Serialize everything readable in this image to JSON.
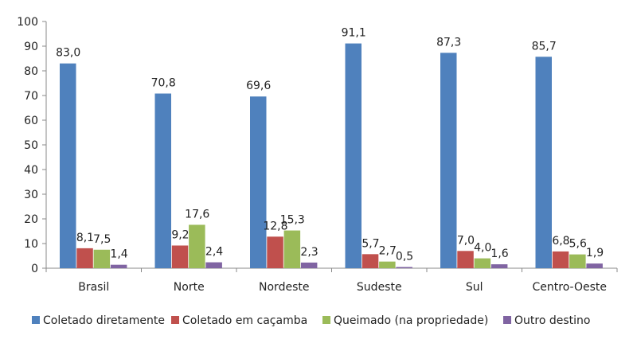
{
  "chart_data": {
    "type": "bar",
    "title": "",
    "xlabel": "",
    "ylabel": "",
    "ylim": [
      0,
      100
    ],
    "yticks": [
      "0",
      "10",
      "20",
      "30",
      "40",
      "50",
      "60",
      "70",
      "80",
      "90",
      "100"
    ],
    "grid": false,
    "legend_position": "bottom",
    "categories": [
      "Brasil",
      "Norte",
      "Nordeste",
      "Sudeste",
      "Sul",
      "Centro-Oeste"
    ],
    "series": [
      {
        "name": "Coletado diretamente",
        "color": "#4F81BD",
        "values": [
          83.0,
          70.8,
          69.6,
          91.1,
          87.3,
          85.7
        ],
        "labels": [
          "83,0",
          "70,8",
          "69,6",
          "91,1",
          "87,3",
          "85,7"
        ]
      },
      {
        "name": "Coletado em caçamba",
        "color": "#C0504D",
        "values": [
          8.1,
          9.2,
          12.8,
          5.7,
          7.0,
          6.8
        ],
        "labels": [
          "8,1",
          "9,2",
          "12,8",
          "5,7",
          "7,0",
          "6,8"
        ]
      },
      {
        "name": "Queimado (na propriedade)",
        "color": "#9BBB59",
        "values": [
          7.5,
          17.6,
          15.3,
          2.7,
          4.0,
          5.6
        ],
        "labels": [
          "7,5",
          "17,6",
          "15,3",
          "2,7",
          "4,0",
          "5,6"
        ]
      },
      {
        "name": "Outro destino",
        "color": "#8064A2",
        "values": [
          1.4,
          2.4,
          2.3,
          0.5,
          1.6,
          1.9
        ],
        "labels": [
          "1,4",
          "2,4",
          "2,3",
          "0,5",
          "1,6",
          "1,9"
        ]
      }
    ]
  }
}
